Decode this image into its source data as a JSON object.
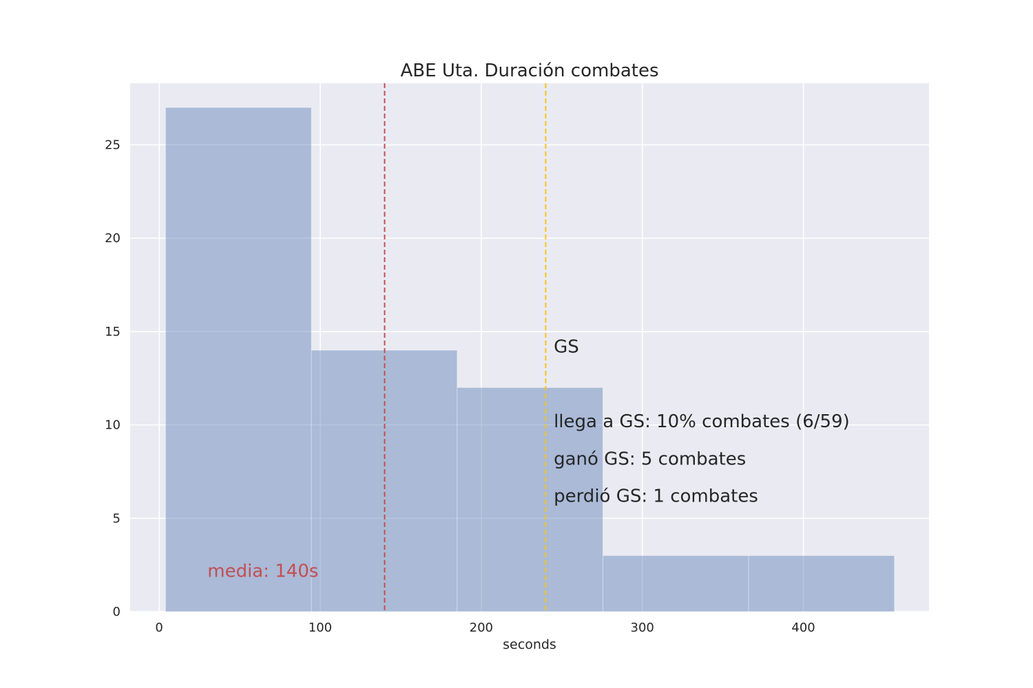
{
  "chart_data": {
    "type": "bar",
    "title": "ABE Uta. Duración combates",
    "xlabel": "seconds",
    "ylabel": "",
    "xlim": [
      -18,
      478
    ],
    "ylim": [
      0,
      28.3
    ],
    "xticks": [
      0,
      100,
      200,
      300,
      400
    ],
    "yticks": [
      0,
      5,
      10,
      15,
      20,
      25
    ],
    "grid": true,
    "bins": [
      {
        "x_start": 4,
        "x_end": 94.5,
        "count": 27
      },
      {
        "x_start": 94.5,
        "x_end": 185,
        "count": 14
      },
      {
        "x_start": 185,
        "x_end": 275.5,
        "count": 12
      },
      {
        "x_start": 275.5,
        "x_end": 366,
        "count": 3
      },
      {
        "x_start": 366,
        "x_end": 456.5,
        "count": 3
      }
    ],
    "bar_color": "#4c72b0",
    "vlines": [
      {
        "name": "media",
        "x": 140,
        "color": "#c44e52"
      },
      {
        "name": "GS",
        "x": 240,
        "color": "#f5c518"
      }
    ],
    "annotations": [
      {
        "text": "GS",
        "x": 245,
        "y": 14.2,
        "color": "#262626"
      },
      {
        "text": "llega a GS: 10% combates (6/59)",
        "x": 245,
        "y": 10.2,
        "color": "#262626"
      },
      {
        "text": "ganó GS: 5 combates",
        "x": 245,
        "y": 8.2,
        "color": "#262626"
      },
      {
        "text": "perdió GS: 1 combates",
        "x": 245,
        "y": 6.2,
        "color": "#262626"
      },
      {
        "text": "media: 140s",
        "x": 30,
        "y": 2.2,
        "color": "#c44e52"
      }
    ]
  }
}
